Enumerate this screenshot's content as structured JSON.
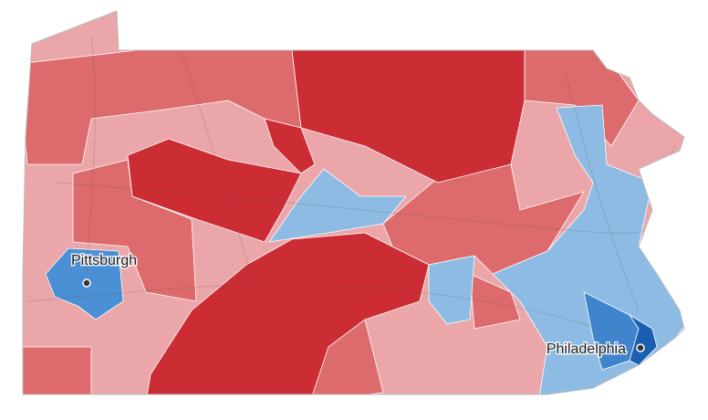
{
  "cities": [
    {
      "label": "Pittsburgh"
    },
    {
      "label": "Philadelphia"
    }
  ]
}
